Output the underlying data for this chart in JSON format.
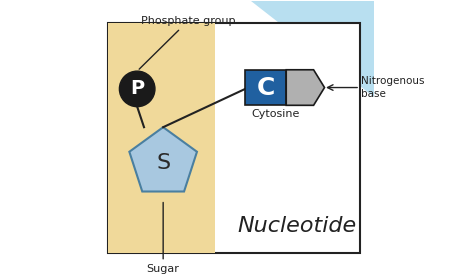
{
  "bg_color": "#ffffff",
  "box_color": "#ffffff",
  "box_border": "#222222",
  "tan_bg": "#f0d99a",
  "blue_triangle_bg": "#add8e6",
  "pentagon_color": "#a8c8e0",
  "pentagon_border": "#4a7fa0",
  "phosphate_circle_color": "#1a1a1a",
  "phosphate_text_color": "#ffffff",
  "cytosine_blue": "#2060a0",
  "cytosine_gray": "#b0b0b0",
  "nucleotide_text": "Nucleotide",
  "phosphate_label": "Phosphate group",
  "sugar_label": "Sugar",
  "cytosine_label": "Cytosine",
  "nitrogenous_label1": "Nitrogenous",
  "nitrogenous_label2": "base",
  "phosphate_letter": "P",
  "sugar_letter": "S",
  "cytosine_letter": "C"
}
